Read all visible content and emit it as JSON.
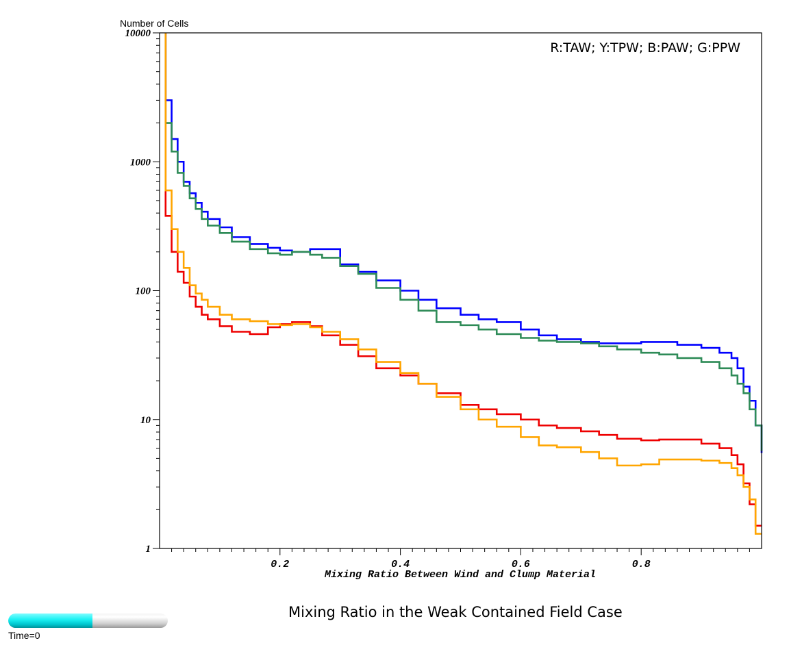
{
  "chart_data": {
    "type": "line",
    "step": true,
    "title": "Mixing Ratio in the Weak Contained Field Case",
    "xlabel": "Mixing Ratio Between Wind and Clump Material",
    "ylabel": "Number of Cells",
    "xlim": [
      0,
      1
    ],
    "ylim": [
      1,
      10000
    ],
    "yscale": "log",
    "x_ticks": [
      "0.2",
      "0.4",
      "0.6",
      "0.8"
    ],
    "y_ticks": [
      "1",
      "10",
      "100",
      "1000",
      "10000"
    ],
    "legend_text": "R:TAW; Y:TPW; B:PAW; G:PPW",
    "legend_position": "top-right",
    "grid": false,
    "series": [
      {
        "color": "#0000ff",
        "x": [
          0.01,
          0.02,
          0.03,
          0.04,
          0.05,
          0.06,
          0.07,
          0.08,
          0.1,
          0.12,
          0.15,
          0.18,
          0.2,
          0.22,
          0.25,
          0.27,
          0.3,
          0.33,
          0.36,
          0.4,
          0.43,
          0.46,
          0.5,
          0.53,
          0.56,
          0.6,
          0.63,
          0.66,
          0.7,
          0.73,
          0.76,
          0.8,
          0.83,
          0.86,
          0.9,
          0.93,
          0.95,
          0.96,
          0.97,
          0.98,
          0.99,
          1.0
        ],
        "y": [
          3000,
          1500,
          1000,
          700,
          570,
          480,
          410,
          360,
          310,
          260,
          230,
          215,
          205,
          200,
          210,
          210,
          160,
          140,
          120,
          100,
          85,
          73,
          65,
          60,
          57,
          50,
          45,
          42,
          40,
          39,
          39,
          40,
          40,
          38,
          36,
          33,
          30,
          25,
          18,
          14,
          9,
          5.5
        ]
      },
      {
        "color": "#2e8b57",
        "x": [
          0.01,
          0.02,
          0.03,
          0.04,
          0.05,
          0.06,
          0.07,
          0.08,
          0.1,
          0.12,
          0.15,
          0.18,
          0.2,
          0.22,
          0.25,
          0.27,
          0.3,
          0.33,
          0.36,
          0.4,
          0.43,
          0.46,
          0.5,
          0.53,
          0.56,
          0.6,
          0.63,
          0.66,
          0.7,
          0.73,
          0.76,
          0.8,
          0.83,
          0.86,
          0.9,
          0.93,
          0.95,
          0.96,
          0.97,
          0.98,
          0.99,
          1.0
        ],
        "y": [
          2000,
          1200,
          820,
          650,
          520,
          430,
          360,
          320,
          280,
          240,
          210,
          195,
          190,
          200,
          190,
          180,
          155,
          135,
          105,
          85,
          70,
          57,
          54,
          50,
          46,
          43,
          41,
          40,
          39,
          37,
          35,
          33,
          32,
          30,
          28,
          25,
          22,
          19,
          16,
          12,
          9,
          5.7
        ]
      },
      {
        "color": "#ee0000",
        "x": [
          0.01,
          0.02,
          0.03,
          0.04,
          0.05,
          0.06,
          0.07,
          0.08,
          0.1,
          0.12,
          0.15,
          0.18,
          0.2,
          0.22,
          0.25,
          0.27,
          0.3,
          0.33,
          0.36,
          0.4,
          0.43,
          0.46,
          0.5,
          0.53,
          0.56,
          0.6,
          0.63,
          0.66,
          0.7,
          0.73,
          0.76,
          0.8,
          0.83,
          0.86,
          0.9,
          0.93,
          0.95,
          0.96,
          0.97,
          0.98,
          0.99,
          1.0
        ],
        "y": [
          380,
          200,
          140,
          115,
          90,
          75,
          65,
          60,
          53,
          48,
          46,
          52,
          55,
          57,
          53,
          45,
          38,
          31,
          25,
          22,
          19,
          16,
          13,
          12,
          11,
          10,
          9,
          8.6,
          8.1,
          7.6,
          7.1,
          6.9,
          7,
          7,
          6.5,
          6,
          5.3,
          4.5,
          3.2,
          2.2,
          1.5,
          1.5
        ]
      },
      {
        "color": "#ffa500",
        "x": [
          0.01,
          0.02,
          0.03,
          0.04,
          0.05,
          0.06,
          0.07,
          0.08,
          0.1,
          0.12,
          0.15,
          0.18,
          0.2,
          0.22,
          0.25,
          0.27,
          0.3,
          0.33,
          0.36,
          0.4,
          0.43,
          0.46,
          0.5,
          0.53,
          0.56,
          0.6,
          0.63,
          0.66,
          0.7,
          0.73,
          0.76,
          0.8,
          0.83,
          0.86,
          0.9,
          0.93,
          0.95,
          0.96,
          0.97,
          0.98,
          0.99,
          1.0
        ],
        "y": [
          600,
          300,
          200,
          150,
          110,
          95,
          85,
          75,
          65,
          60,
          58,
          55,
          54,
          55,
          52,
          48,
          42,
          35,
          28,
          23,
          19,
          15,
          12,
          10,
          8.8,
          7.3,
          6.3,
          6.1,
          5.6,
          5.0,
          4.4,
          4.5,
          4.9,
          4.9,
          4.8,
          4.6,
          4.2,
          3.7,
          3.0,
          2.4,
          1.3,
          1.3
        ]
      }
    ]
  },
  "time_slider": {
    "label": "Time=0",
    "progress": 0.53,
    "fill_color": "#00e5e8"
  }
}
